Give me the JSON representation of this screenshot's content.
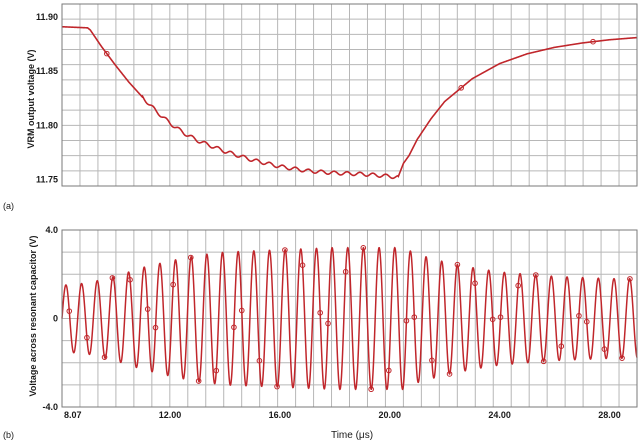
{
  "colors": {
    "trace": "#c0262b",
    "grid": "#b7b7b7",
    "frame": "#7a7a7a",
    "plot_bg": "#ffffff"
  },
  "panel_labels": [
    "(a)",
    "(b)"
  ],
  "chart_data": [
    {
      "type": "line",
      "panel": "(a)",
      "ylabel": "VRM output voltage (V)",
      "xlabel": "",
      "xlim": [
        8.07,
        29.0
      ],
      "ylim": [
        11.744,
        11.912
      ],
      "yticks": [
        11.75,
        11.8,
        11.85,
        11.9
      ],
      "ytick_labels": [
        "11.75",
        "11.80",
        "11.85",
        "11.90"
      ],
      "grid": true,
      "series": [
        {
          "x": [
            8.07,
            9.0,
            9.1,
            9.5,
            10.0,
            10.5,
            11.0,
            11.5,
            12.0,
            12.5,
            13.0,
            14.0,
            15.0,
            16.0,
            17.0,
            18.0,
            19.0,
            20.0,
            20.3,
            20.5,
            20.7,
            21.0,
            21.5,
            22.0,
            23.0,
            24.0,
            25.0,
            26.0,
            27.0,
            28.0,
            29.0
          ],
          "y": [
            11.891,
            11.89,
            11.888,
            11.873,
            11.856,
            11.84,
            11.826,
            11.813,
            11.802,
            11.793,
            11.786,
            11.776,
            11.768,
            11.762,
            11.758,
            11.756,
            11.755,
            11.753,
            11.752,
            11.765,
            11.772,
            11.787,
            11.806,
            11.822,
            11.843,
            11.857,
            11.866,
            11.872,
            11.876,
            11.879,
            11.881
          ]
        }
      ],
      "oscillation": {
        "amplitude": 0.0016,
        "period": 0.47,
        "x_range": [
          11.0,
          20.3
        ]
      },
      "markers_x": [
        9.7,
        22.6,
        27.4
      ]
    },
    {
      "type": "line",
      "panel": "(b)",
      "ylabel": "Voltage across resonant capacitor (V)",
      "xlabel": "Time (μs)",
      "xlim": [
        8.07,
        29.0
      ],
      "ylim": [
        -4.0,
        4.0
      ],
      "yticks": [
        -4.0,
        0,
        4.0
      ],
      "ytick_labels": [
        "-4.0",
        "0",
        "4.0"
      ],
      "xticks": [
        8.07,
        12.0,
        16.0,
        20.0,
        24.0,
        28.0
      ],
      "xtick_labels": [
        "8.07",
        "12.00",
        "16.00",
        "20.00",
        "24.00",
        "28.00"
      ],
      "grid": true,
      "waveform": {
        "kind": "sinusoid",
        "period": 0.57,
        "envelope_x": [
          8.07,
          9.0,
          10.0,
          11.0,
          12.0,
          13.0,
          14.0,
          15.0,
          16.0,
          17.0,
          18.0,
          19.0,
          20.0,
          20.5,
          21.0,
          22.0,
          23.0,
          24.0,
          25.0,
          26.0,
          27.0,
          28.0,
          29.0
        ],
        "envelope_amp": [
          1.5,
          1.6,
          1.9,
          2.3,
          2.6,
          2.85,
          3.0,
          3.05,
          3.1,
          3.15,
          3.2,
          3.2,
          3.2,
          3.2,
          2.9,
          2.55,
          2.3,
          2.1,
          2.0,
          1.9,
          1.85,
          1.8,
          1.8
        ]
      },
      "marker_count": 40
    }
  ]
}
